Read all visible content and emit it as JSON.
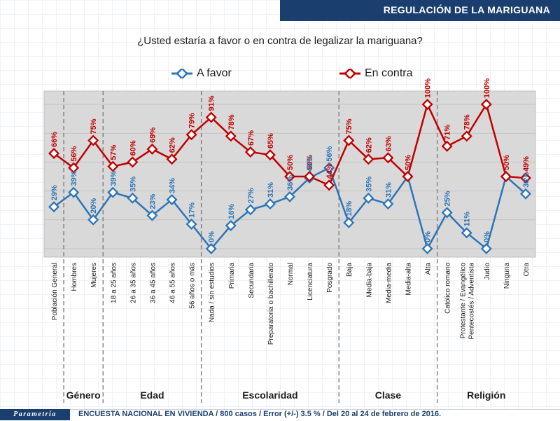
{
  "header": {
    "title": "REGULACIÓN DE LA MARIGUANA"
  },
  "question": "¿Usted estaría a favor o en contra de legalizar la mariguana?",
  "footer": {
    "logo": "Parametría",
    "text": "ENCUESTA NACIONAL EN VIVIENDA / 800 casos / Error (+/-) 3.5 % / Del 20 al 24 de febrero de 2016."
  },
  "colors": {
    "favor": "#2e75b6",
    "contra": "#c00000",
    "plot_bg": "#d9d9d9",
    "header": "#1a3f6e"
  },
  "chart_data": {
    "type": "line",
    "categories": [
      "Población General",
      "Hombres",
      "Mujeres",
      "18 a 25 años",
      "26 a 35 años",
      "36 a 45 años",
      "46 a 55 años",
      "56 años o más",
      "Nada / sin estudios",
      "Primaria",
      "Secundaria",
      "Preparatoria o bachillerato",
      "Normal",
      "Licenciatura",
      "Posgrado",
      "Baja",
      "Media-baja",
      "Media-media",
      "Media-alta",
      "Alta",
      "Católico romano",
      "Protestante / Evangélico / Pentecostés / Adventista",
      "Judío",
      "Ninguna",
      "Otra"
    ],
    "series": [
      {
        "name": "A favor",
        "values": [
          29,
          39,
          20,
          39,
          35,
          23,
          34,
          17,
          0,
          16,
          27,
          31,
          36,
          49,
          56,
          18,
          35,
          31,
          50,
          0,
          25,
          11,
          0,
          50,
          38
        ]
      },
      {
        "name": "En contra",
        "values": [
          66,
          56,
          75,
          57,
          60,
          69,
          62,
          79,
          91,
          78,
          67,
          65,
          50,
          50,
          44,
          75,
          62,
          63,
          50,
          100,
          71,
          78,
          100,
          50,
          49
        ]
      }
    ],
    "labels": {
      "favor": [
        "29%",
        "39%",
        "20%",
        "39%",
        "35%",
        "23%",
        "34%",
        "17%",
        "0%",
        "16%",
        "27%",
        "31%",
        "36%",
        "49%",
        "56%",
        "18%",
        "35%",
        "31%",
        "",
        "0%",
        "25%",
        "11%",
        "0%",
        "",
        "38%"
      ],
      "contra": [
        "66%",
        "56%",
        "75%",
        "57%",
        "60%",
        "69%",
        "62%",
        "79%",
        "91%",
        "78%",
        "67%",
        "65%",
        "50%",
        "50%",
        "44%",
        "75%",
        "62%",
        "63%",
        "50%",
        "100%",
        "71%",
        "78%",
        "100%",
        "50%",
        "49%"
      ]
    },
    "groups": [
      {
        "name": "Género",
        "start": 1,
        "end": 2
      },
      {
        "name": "Edad",
        "start": 3,
        "end": 7
      },
      {
        "name": "Escolaridad",
        "start": 8,
        "end": 14
      },
      {
        "name": "Clase",
        "start": 15,
        "end": 19
      },
      {
        "name": "Religión",
        "start": 20,
        "end": 24
      }
    ],
    "title": "",
    "xlabel": "",
    "ylabel": "",
    "ylim": [
      0,
      100
    ],
    "grid": true,
    "legend": "top"
  }
}
